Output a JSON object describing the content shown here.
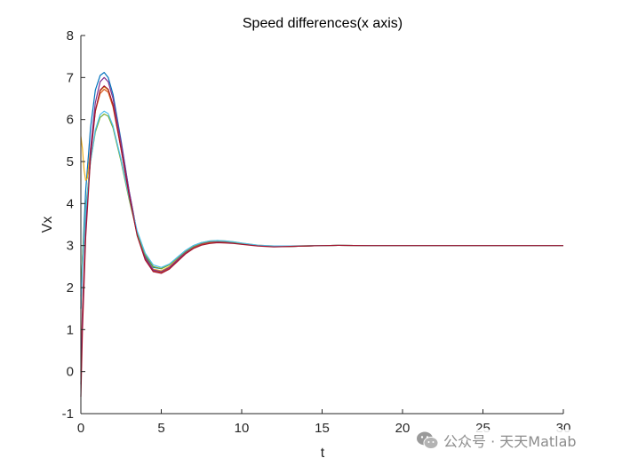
{
  "chart_data": {
    "type": "line",
    "title": "Speed differences(x axis)",
    "xlabel": "t",
    "ylabel": "Vx",
    "xlim": [
      0,
      30
    ],
    "ylim": [
      -1,
      8
    ],
    "xticks": [
      0,
      5,
      10,
      15,
      20,
      25,
      30
    ],
    "yticks": [
      -1,
      0,
      1,
      2,
      3,
      4,
      5,
      6,
      7,
      8
    ],
    "grid": false,
    "series": [
      {
        "color": "#0072BD",
        "values": [
          [
            0.0,
            1.5
          ],
          [
            0.1,
            2.7
          ],
          [
            0.3,
            4.3
          ],
          [
            0.6,
            5.8
          ],
          [
            0.9,
            6.7
          ],
          [
            1.2,
            7.05
          ],
          [
            1.45,
            7.12
          ],
          [
            1.7,
            7.0
          ],
          [
            2.0,
            6.6
          ],
          [
            2.5,
            5.5
          ],
          [
            3.0,
            4.3
          ],
          [
            3.5,
            3.3
          ],
          [
            4.0,
            2.75
          ],
          [
            4.5,
            2.48
          ],
          [
            5.0,
            2.45
          ],
          [
            5.5,
            2.55
          ],
          [
            6.0,
            2.72
          ],
          [
            6.5,
            2.88
          ],
          [
            7.0,
            3.0
          ],
          [
            7.5,
            3.07
          ],
          [
            8.0,
            3.1
          ],
          [
            8.5,
            3.11
          ],
          [
            9.0,
            3.1
          ],
          [
            9.5,
            3.08
          ],
          [
            10.0,
            3.05
          ],
          [
            11.0,
            3.0
          ],
          [
            12.0,
            2.98
          ],
          [
            13.0,
            2.98
          ],
          [
            14.0,
            2.99
          ],
          [
            15.0,
            3.0
          ],
          [
            16.0,
            3.005
          ],
          [
            18.0,
            3.0
          ],
          [
            20.0,
            3.0
          ],
          [
            25.0,
            3.0
          ],
          [
            30.0,
            3.0
          ]
        ]
      },
      {
        "color": "#D95319",
        "values": [
          [
            0.0,
            0.0
          ],
          [
            0.1,
            1.5
          ],
          [
            0.3,
            3.5
          ],
          [
            0.6,
            5.2
          ],
          [
            0.9,
            6.2
          ],
          [
            1.2,
            6.62
          ],
          [
            1.45,
            6.72
          ],
          [
            1.7,
            6.65
          ],
          [
            2.0,
            6.3
          ],
          [
            2.5,
            5.3
          ],
          [
            3.0,
            4.2
          ],
          [
            3.5,
            3.25
          ],
          [
            4.0,
            2.68
          ],
          [
            4.5,
            2.4
          ],
          [
            5.0,
            2.36
          ],
          [
            5.5,
            2.46
          ],
          [
            6.0,
            2.64
          ],
          [
            6.5,
            2.82
          ],
          [
            7.0,
            2.95
          ],
          [
            7.5,
            3.03
          ],
          [
            8.0,
            3.07
          ],
          [
            8.5,
            3.08
          ],
          [
            9.0,
            3.08
          ],
          [
            9.5,
            3.06
          ],
          [
            10.0,
            3.04
          ],
          [
            11.0,
            3.0
          ],
          [
            12.0,
            2.98
          ],
          [
            13.0,
            2.98
          ],
          [
            14.0,
            2.99
          ],
          [
            15.0,
            3.0
          ],
          [
            16.0,
            3.005
          ],
          [
            18.0,
            3.0
          ],
          [
            20.0,
            3.0
          ],
          [
            25.0,
            3.0
          ],
          [
            30.0,
            3.0
          ]
        ]
      },
      {
        "color": "#EDB120",
        "values": [
          [
            0.0,
            5.6
          ],
          [
            0.1,
            5.3
          ],
          [
            0.2,
            4.8
          ],
          [
            0.3,
            4.55
          ],
          [
            0.4,
            4.6
          ],
          [
            0.6,
            5.3
          ],
          [
            0.9,
            6.2
          ],
          [
            1.2,
            6.68
          ],
          [
            1.45,
            6.78
          ],
          [
            1.7,
            6.7
          ],
          [
            2.0,
            6.35
          ],
          [
            2.5,
            5.35
          ],
          [
            3.0,
            4.25
          ],
          [
            3.5,
            3.3
          ],
          [
            4.0,
            2.72
          ],
          [
            4.5,
            2.44
          ],
          [
            5.0,
            2.4
          ],
          [
            5.5,
            2.5
          ],
          [
            6.0,
            2.68
          ],
          [
            6.5,
            2.86
          ],
          [
            7.0,
            2.99
          ],
          [
            7.5,
            3.07
          ],
          [
            8.0,
            3.11
          ],
          [
            8.5,
            3.12
          ],
          [
            9.0,
            3.11
          ],
          [
            9.5,
            3.09
          ],
          [
            10.0,
            3.06
          ],
          [
            11.0,
            3.01
          ],
          [
            12.0,
            2.99
          ],
          [
            13.0,
            2.99
          ],
          [
            14.0,
            2.995
          ],
          [
            15.0,
            3.0
          ],
          [
            16.0,
            3.005
          ],
          [
            18.0,
            3.0
          ],
          [
            20.0,
            3.0
          ],
          [
            25.0,
            3.0
          ],
          [
            30.0,
            3.0
          ]
        ]
      },
      {
        "color": "#7E2F8E",
        "values": [
          [
            0.0,
            -0.3
          ],
          [
            0.1,
            1.3
          ],
          [
            0.3,
            3.4
          ],
          [
            0.6,
            5.3
          ],
          [
            0.9,
            6.4
          ],
          [
            1.2,
            6.9
          ],
          [
            1.45,
            7.0
          ],
          [
            1.7,
            6.9
          ],
          [
            2.0,
            6.5
          ],
          [
            2.5,
            5.45
          ],
          [
            3.0,
            4.3
          ],
          [
            3.5,
            3.3
          ],
          [
            4.0,
            2.72
          ],
          [
            4.5,
            2.42
          ],
          [
            5.0,
            2.38
          ],
          [
            5.5,
            2.48
          ],
          [
            6.0,
            2.66
          ],
          [
            6.5,
            2.84
          ],
          [
            7.0,
            2.97
          ],
          [
            7.5,
            3.05
          ],
          [
            8.0,
            3.09
          ],
          [
            8.5,
            3.1
          ],
          [
            9.0,
            3.09
          ],
          [
            9.5,
            3.07
          ],
          [
            10.0,
            3.05
          ],
          [
            11.0,
            3.0
          ],
          [
            12.0,
            2.98
          ],
          [
            13.0,
            2.98
          ],
          [
            14.0,
            2.99
          ],
          [
            15.0,
            3.0
          ],
          [
            16.0,
            3.005
          ],
          [
            18.0,
            3.0
          ],
          [
            20.0,
            3.0
          ],
          [
            25.0,
            3.0
          ],
          [
            30.0,
            3.0
          ]
        ]
      },
      {
        "color": "#77AC30",
        "values": [
          [
            0.0,
            1.8
          ],
          [
            0.1,
            2.7
          ],
          [
            0.3,
            3.9
          ],
          [
            0.6,
            5.0
          ],
          [
            0.9,
            5.7
          ],
          [
            1.2,
            6.05
          ],
          [
            1.45,
            6.13
          ],
          [
            1.7,
            6.08
          ],
          [
            2.0,
            5.8
          ],
          [
            2.5,
            5.0
          ],
          [
            3.0,
            4.1
          ],
          [
            3.5,
            3.3
          ],
          [
            4.0,
            2.78
          ],
          [
            4.5,
            2.5
          ],
          [
            5.0,
            2.45
          ],
          [
            5.5,
            2.54
          ],
          [
            6.0,
            2.7
          ],
          [
            6.5,
            2.86
          ],
          [
            7.0,
            2.98
          ],
          [
            7.5,
            3.06
          ],
          [
            8.0,
            3.1
          ],
          [
            8.5,
            3.11
          ],
          [
            9.0,
            3.1
          ],
          [
            9.5,
            3.08
          ],
          [
            10.0,
            3.05
          ],
          [
            11.0,
            3.0
          ],
          [
            12.0,
            2.98
          ],
          [
            13.0,
            2.98
          ],
          [
            14.0,
            2.99
          ],
          [
            15.0,
            3.0
          ],
          [
            16.0,
            3.005
          ],
          [
            18.0,
            3.0
          ],
          [
            20.0,
            3.0
          ],
          [
            25.0,
            3.0
          ],
          [
            30.0,
            3.0
          ]
        ]
      },
      {
        "color": "#4DBEEE",
        "values": [
          [
            0.0,
            1.5
          ],
          [
            0.1,
            2.5
          ],
          [
            0.3,
            3.8
          ],
          [
            0.6,
            5.0
          ],
          [
            0.9,
            5.75
          ],
          [
            1.2,
            6.12
          ],
          [
            1.45,
            6.2
          ],
          [
            1.7,
            6.14
          ],
          [
            2.0,
            5.85
          ],
          [
            2.5,
            5.05
          ],
          [
            3.0,
            4.15
          ],
          [
            3.5,
            3.35
          ],
          [
            4.0,
            2.82
          ],
          [
            4.5,
            2.54
          ],
          [
            5.0,
            2.48
          ],
          [
            5.5,
            2.56
          ],
          [
            6.0,
            2.72
          ],
          [
            6.5,
            2.88
          ],
          [
            7.0,
            3.0
          ],
          [
            7.5,
            3.07
          ],
          [
            8.0,
            3.11
          ],
          [
            8.5,
            3.12
          ],
          [
            9.0,
            3.11
          ],
          [
            9.5,
            3.09
          ],
          [
            10.0,
            3.06
          ],
          [
            11.0,
            3.01
          ],
          [
            12.0,
            2.99
          ],
          [
            13.0,
            2.99
          ],
          [
            14.0,
            2.995
          ],
          [
            15.0,
            3.0
          ],
          [
            16.0,
            3.005
          ],
          [
            18.0,
            3.0
          ],
          [
            20.0,
            3.0
          ],
          [
            25.0,
            3.0
          ],
          [
            30.0,
            3.0
          ]
        ]
      },
      {
        "color": "#A2142F",
        "values": [
          [
            0.0,
            -0.6
          ],
          [
            0.1,
            1.0
          ],
          [
            0.3,
            3.2
          ],
          [
            0.6,
            5.1
          ],
          [
            0.9,
            6.2
          ],
          [
            1.2,
            6.7
          ],
          [
            1.45,
            6.8
          ],
          [
            1.7,
            6.72
          ],
          [
            2.0,
            6.35
          ],
          [
            2.5,
            5.3
          ],
          [
            3.0,
            4.2
          ],
          [
            3.5,
            3.24
          ],
          [
            4.0,
            2.66
          ],
          [
            4.5,
            2.38
          ],
          [
            5.0,
            2.34
          ],
          [
            5.5,
            2.44
          ],
          [
            6.0,
            2.62
          ],
          [
            6.5,
            2.8
          ],
          [
            7.0,
            2.93
          ],
          [
            7.5,
            3.01
          ],
          [
            8.0,
            3.05
          ],
          [
            8.5,
            3.07
          ],
          [
            9.0,
            3.06
          ],
          [
            9.5,
            3.05
          ],
          [
            10.0,
            3.03
          ],
          [
            11.0,
            2.99
          ],
          [
            12.0,
            2.97
          ],
          [
            13.0,
            2.98
          ],
          [
            14.0,
            2.99
          ],
          [
            15.0,
            3.0
          ],
          [
            16.0,
            3.005
          ],
          [
            18.0,
            3.0
          ],
          [
            20.0,
            3.0
          ],
          [
            25.0,
            3.0
          ],
          [
            30.0,
            3.0
          ]
        ]
      }
    ]
  },
  "watermark": {
    "text": "公众号 · 天天Matlab",
    "icon": "wechat-icon"
  }
}
